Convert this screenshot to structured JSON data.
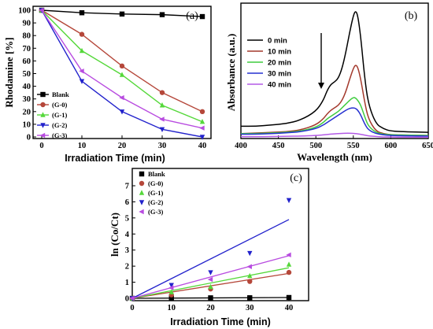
{
  "colors": {
    "blank": "#000000",
    "g0": "#b5473a",
    "g1": "#55d83a",
    "g2": "#2222cc",
    "g3": "#b84be0",
    "zero": "#000000",
    "m10": "#a3392c",
    "m20": "#3fcc3f",
    "m30": "#2530d0",
    "m40": "#b35ae6"
  },
  "panels": {
    "a": "(a)",
    "b": "(b)",
    "c": "(c)"
  },
  "chart_data": [
    {
      "id": "a",
      "type": "line",
      "xlabel": "Irradiation Time (min)",
      "ylabel": "Rhodamine [%]",
      "xlim": [
        0,
        40
      ],
      "ylim": [
        0,
        100
      ],
      "xticks": [
        "0",
        "10",
        "20",
        "30",
        "40"
      ],
      "yticks": [
        "0",
        "10",
        "20",
        "30",
        "40",
        "50",
        "60",
        "70",
        "80",
        "90",
        "100"
      ],
      "x": [
        0,
        10,
        20,
        30,
        40
      ],
      "series": [
        {
          "name": "Blank",
          "values": [
            100,
            98,
            97,
            96.5,
            95
          ]
        },
        {
          "name": "(G-0)",
          "values": [
            100,
            81,
            56,
            35,
            20
          ]
        },
        {
          "name": "(G-1)",
          "values": [
            100,
            68,
            49,
            25,
            12
          ]
        },
        {
          "name": "(G-2)",
          "values": [
            100,
            44,
            20,
            6,
            0
          ]
        },
        {
          "name": "(G-3)",
          "values": [
            100,
            52,
            31,
            14,
            7
          ]
        }
      ],
      "legend": "middle-left"
    },
    {
      "id": "b",
      "type": "line",
      "xlabel": "Wavelength (nm)",
      "ylabel": "Absorbance (a.u.)",
      "xlim": [
        400,
        650
      ],
      "ylim": [
        0,
        1.1
      ],
      "xticks": [
        "400",
        "450",
        "500",
        "550",
        "600",
        "650"
      ],
      "x": [
        400,
        420,
        440,
        460,
        480,
        500,
        510,
        515,
        520,
        525,
        530,
        535,
        540,
        545,
        550,
        553,
        556,
        560,
        565,
        570,
        580,
        590,
        600,
        620,
        650
      ],
      "series": [
        {
          "name": "0 min",
          "values": [
            0.1,
            0.1,
            0.11,
            0.12,
            0.15,
            0.22,
            0.31,
            0.39,
            0.44,
            0.46,
            0.49,
            0.57,
            0.7,
            0.86,
            1.0,
            1.04,
            1.0,
            0.82,
            0.5,
            0.28,
            0.12,
            0.08,
            0.06,
            0.055,
            0.05
          ]
        },
        {
          "name": "10 min",
          "values": [
            0.04,
            0.045,
            0.05,
            0.055,
            0.07,
            0.11,
            0.16,
            0.2,
            0.23,
            0.25,
            0.27,
            0.31,
            0.38,
            0.48,
            0.57,
            0.6,
            0.58,
            0.48,
            0.3,
            0.16,
            0.06,
            0.04,
            0.03,
            0.028,
            0.025
          ]
        },
        {
          "name": "20 min",
          "values": [
            0.04,
            0.04,
            0.045,
            0.05,
            0.06,
            0.09,
            0.13,
            0.16,
            0.18,
            0.2,
            0.22,
            0.25,
            0.28,
            0.31,
            0.335,
            0.33,
            0.31,
            0.27,
            0.18,
            0.1,
            0.05,
            0.035,
            0.03,
            0.028,
            0.025
          ]
        },
        {
          "name": "30 min",
          "values": [
            0.035,
            0.035,
            0.04,
            0.045,
            0.055,
            0.08,
            0.11,
            0.13,
            0.15,
            0.17,
            0.19,
            0.21,
            0.23,
            0.245,
            0.25,
            0.245,
            0.23,
            0.19,
            0.12,
            0.07,
            0.04,
            0.03,
            0.025,
            0.022,
            0.02
          ]
        },
        {
          "name": "40 min",
          "values": [
            0.015,
            0.015,
            0.016,
            0.018,
            0.02,
            0.025,
            0.03,
            0.033,
            0.036,
            0.038,
            0.04,
            0.042,
            0.043,
            0.043,
            0.042,
            0.04,
            0.038,
            0.034,
            0.028,
            0.022,
            0.016,
            0.013,
            0.012,
            0.011,
            0.01
          ]
        }
      ],
      "legend": "top-left",
      "annotation": "arrow pointing down (decreasing absorbance)"
    },
    {
      "id": "c",
      "type": "scatter",
      "xlabel": "Irradiation Time (min)",
      "ylabel": "ln (Co/Ct)",
      "xlim": [
        0,
        40
      ],
      "ylim": [
        0,
        7
      ],
      "xticks": [
        "0",
        "10",
        "20",
        "30",
        "40"
      ],
      "yticks": [
        "0",
        "1",
        "2",
        "3",
        "4",
        "5",
        "6",
        "7"
      ],
      "x": [
        0,
        10,
        20,
        30,
        40
      ],
      "series": [
        {
          "name": "Blank",
          "values": [
            0,
            0.02,
            0.03,
            0.035,
            0.05
          ],
          "fit": [
            0,
            0.05
          ]
        },
        {
          "name": "(G-0)",
          "values": [
            0,
            0.21,
            0.58,
            1.05,
            1.61
          ],
          "fit": [
            0,
            1.55
          ]
        },
        {
          "name": "(G-1)",
          "values": [
            0,
            0.38,
            0.71,
            1.39,
            2.1
          ],
          "fit": [
            0,
            1.9
          ]
        },
        {
          "name": "(G-2)",
          "values": [
            0,
            0.82,
            1.61,
            2.81,
            6.1
          ],
          "fit": [
            0,
            4.9
          ]
        },
        {
          "name": "(G-3)",
          "values": [
            0,
            0.65,
            1.17,
            1.97,
            2.7
          ],
          "fit": [
            0,
            2.65
          ]
        }
      ],
      "legend": "top-left"
    }
  ]
}
